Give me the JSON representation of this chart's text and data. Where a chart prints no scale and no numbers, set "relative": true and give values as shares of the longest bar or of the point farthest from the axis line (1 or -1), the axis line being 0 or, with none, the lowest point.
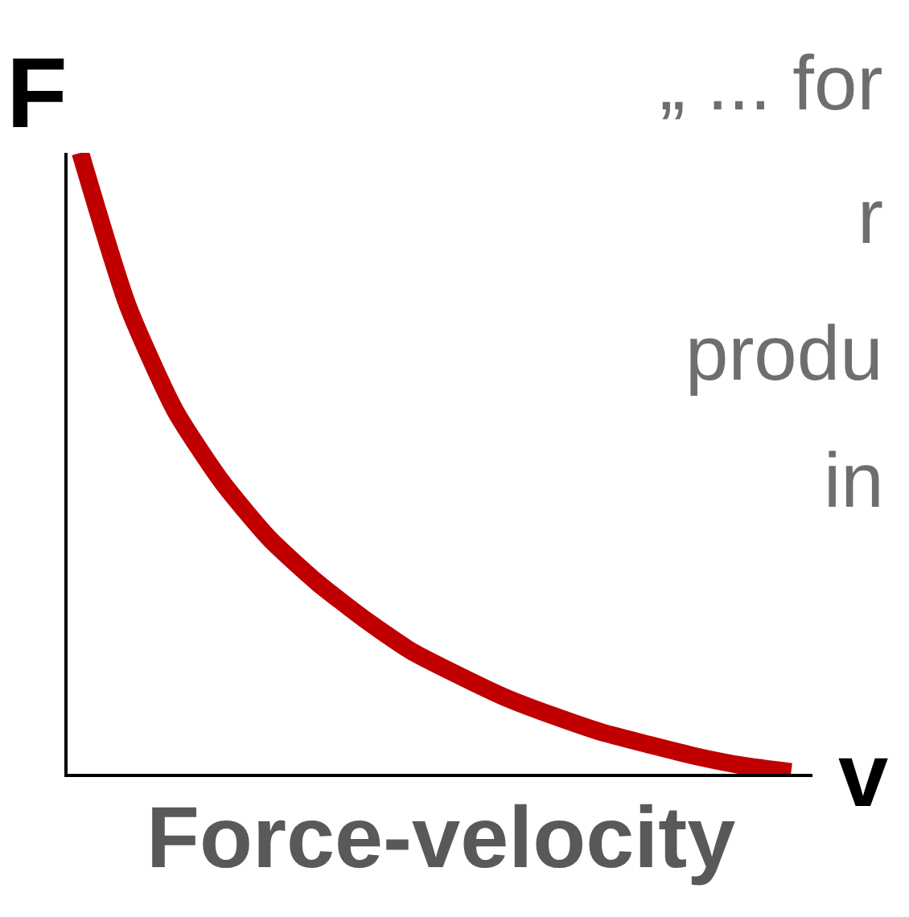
{
  "chart_data": {
    "type": "line",
    "title": "Force-velocity",
    "xlabel": "v",
    "ylabel": "F",
    "relative": true,
    "categories": [
      null,
      null,
      null,
      null,
      null,
      null,
      null,
      null,
      null,
      null,
      null,
      null,
      null,
      null,
      null,
      null
    ],
    "series": [
      {
        "color": "#c00000",
        "values": [
          1.0,
          0.754,
          0.585,
          0.469,
          0.378,
          0.308,
          0.249,
          0.197,
          0.158,
          0.122,
          0.093,
          0.067,
          0.047,
          0.028,
          0.013,
          0.003
        ]
      }
    ],
    "annotations": [
      "„ ... for",
      "r",
      "produ",
      "in"
    ],
    "marker": "none",
    "line_style": "solid"
  }
}
